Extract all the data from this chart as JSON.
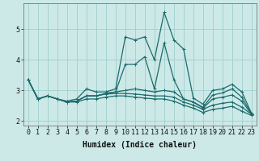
{
  "xlabel": "Humidex (Indice chaleur)",
  "background_color": "#cce9e8",
  "grid_color": "#9ecece",
  "line_color": "#1e6b6b",
  "lines": [
    [
      3.35,
      2.72,
      2.82,
      2.72,
      2.65,
      2.72,
      3.05,
      2.95,
      2.95,
      3.05,
      4.75,
      4.65,
      4.75,
      4.0,
      5.55,
      4.65,
      4.35,
      2.75,
      2.55,
      3.0,
      3.05,
      3.2,
      2.95,
      2.25
    ],
    [
      3.35,
      2.72,
      2.82,
      2.72,
      2.62,
      2.65,
      2.82,
      2.82,
      2.9,
      2.95,
      3.85,
      3.85,
      4.1,
      3.05,
      4.55,
      3.35,
      2.72,
      2.62,
      2.45,
      2.85,
      2.92,
      3.05,
      2.78,
      2.22
    ],
    [
      3.35,
      2.72,
      2.82,
      2.72,
      2.62,
      2.65,
      2.82,
      2.82,
      2.9,
      2.95,
      3.0,
      3.05,
      3.0,
      2.95,
      3.0,
      2.95,
      2.72,
      2.62,
      2.42,
      2.72,
      2.78,
      2.85,
      2.65,
      2.22
    ],
    [
      3.35,
      2.72,
      2.82,
      2.72,
      2.62,
      2.65,
      2.82,
      2.82,
      2.88,
      2.9,
      2.9,
      2.88,
      2.85,
      2.82,
      2.82,
      2.78,
      2.62,
      2.52,
      2.38,
      2.52,
      2.58,
      2.62,
      2.45,
      2.22
    ],
    [
      3.35,
      2.72,
      2.82,
      2.72,
      2.62,
      2.62,
      2.72,
      2.72,
      2.78,
      2.82,
      2.82,
      2.78,
      2.75,
      2.72,
      2.72,
      2.65,
      2.52,
      2.42,
      2.28,
      2.38,
      2.42,
      2.48,
      2.32,
      2.18
    ]
  ],
  "markers": [
    "+",
    "+",
    "+",
    "+",
    "+"
  ],
  "xlim": [
    -0.5,
    23.5
  ],
  "ylim": [
    1.85,
    5.85
  ],
  "yticks": [
    2,
    3,
    4,
    5
  ],
  "xticks": [
    0,
    1,
    2,
    3,
    4,
    5,
    6,
    7,
    8,
    9,
    10,
    11,
    12,
    13,
    14,
    15,
    16,
    17,
    18,
    19,
    20,
    21,
    22,
    23
  ],
  "xlabel_fontsize": 7,
  "tick_fontsize": 6
}
